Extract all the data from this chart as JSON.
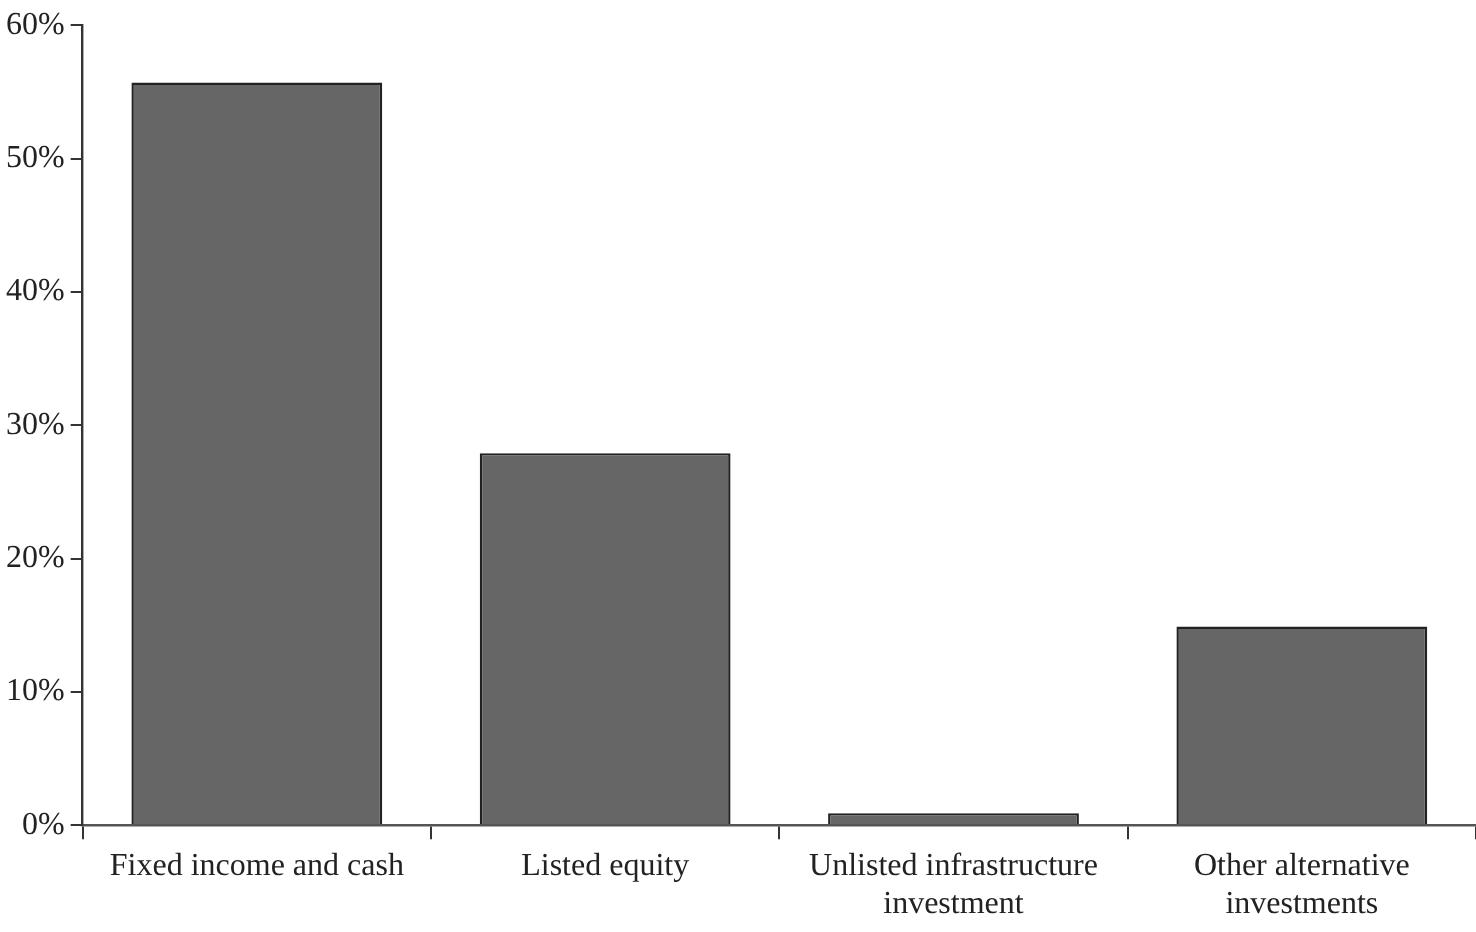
{
  "chart_data": {
    "type": "bar",
    "categories": [
      "Fixed income and cash",
      "Listed equity",
      "Unlisted infrastructure investment",
      "Other alternative investments"
    ],
    "values": [
      55.7,
      27.9,
      0.9,
      14.9
    ],
    "color": "#666666",
    "ylim": [
      0,
      60
    ],
    "yticks": [
      {
        "value": 0,
        "label": "0%"
      },
      {
        "value": 10,
        "label": "10%"
      },
      {
        "value": 20,
        "label": "20%"
      },
      {
        "value": 30,
        "label": "30%"
      },
      {
        "value": 40,
        "label": "40%"
      },
      {
        "value": 50,
        "label": "50%"
      },
      {
        "value": 60,
        "label": "60%"
      }
    ],
    "grid": false,
    "legend": false
  }
}
